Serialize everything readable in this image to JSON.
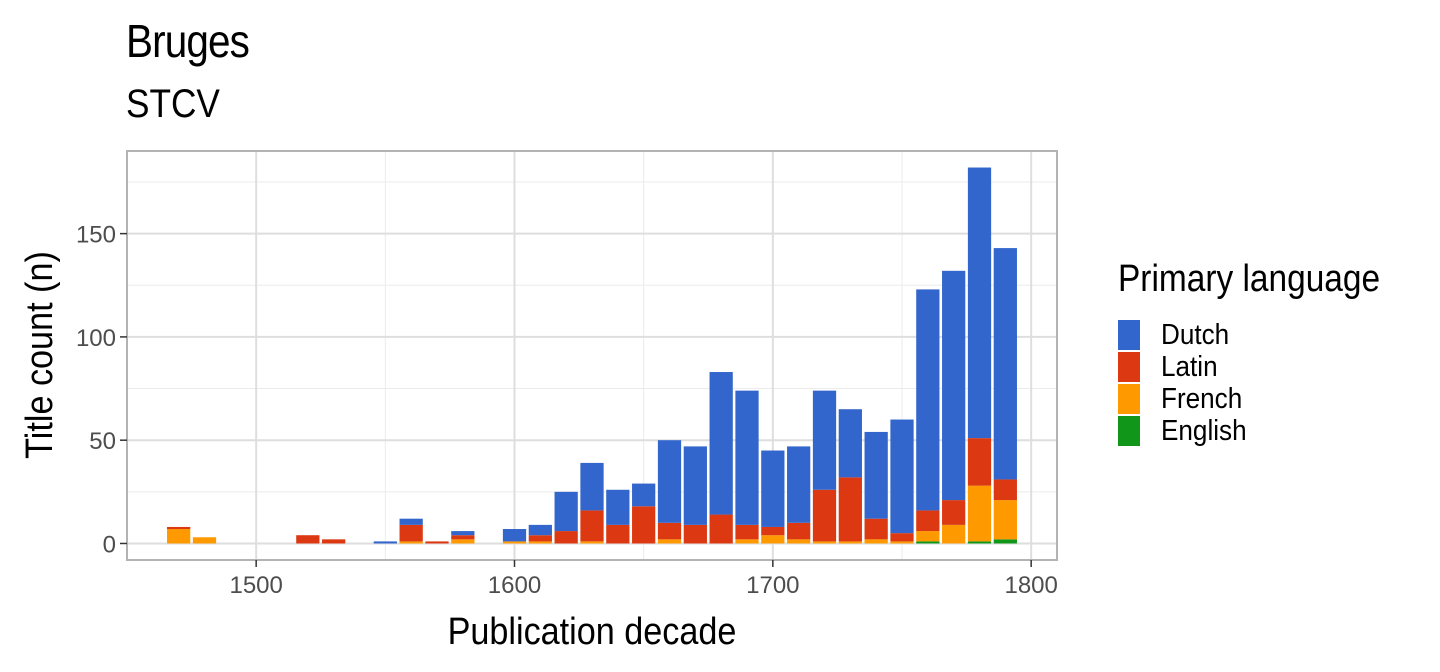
{
  "title": "Bruges",
  "subtitle": "STCV",
  "legend": {
    "title": "Primary language",
    "items": [
      {
        "label": "Dutch",
        "color": "#3366CC"
      },
      {
        "label": "Latin",
        "color": "#DC3912"
      },
      {
        "label": "French",
        "color": "#FF9900"
      },
      {
        "label": "English",
        "color": "#109618"
      }
    ]
  },
  "chart_data": {
    "type": "bar",
    "stacked": true,
    "title": "Bruges",
    "subtitle": "STCV",
    "xlabel": "Publication decade",
    "ylabel": "Title count (n)",
    "xlim": [
      1450,
      1810
    ],
    "ylim": [
      -8,
      190
    ],
    "x_ticks": [
      1500,
      1600,
      1700,
      1800
    ],
    "y_ticks": [
      0,
      50,
      100,
      150
    ],
    "grid": true,
    "legend_position": "right",
    "x": [
      1470,
      1480,
      1520,
      1530,
      1550,
      1560,
      1570,
      1580,
      1600,
      1610,
      1620,
      1630,
      1640,
      1650,
      1660,
      1670,
      1680,
      1690,
      1700,
      1710,
      1720,
      1730,
      1740,
      1750,
      1760,
      1770,
      1780,
      1790
    ],
    "series": [
      {
        "name": "English",
        "color": "#109618",
        "values": [
          0,
          0,
          0,
          0,
          0,
          0,
          0,
          0,
          0,
          0,
          0,
          0,
          0,
          0,
          0,
          0,
          0,
          0,
          0,
          0,
          0,
          0,
          0,
          0,
          1,
          0,
          1,
          2
        ]
      },
      {
        "name": "French",
        "color": "#FF9900",
        "values": [
          7,
          3,
          0,
          0,
          0,
          1,
          0,
          2,
          1,
          1,
          0,
          1,
          0,
          0,
          2,
          0,
          0,
          2,
          4,
          2,
          1,
          1,
          2,
          1,
          5,
          9,
          27,
          19
        ]
      },
      {
        "name": "Latin",
        "color": "#DC3912",
        "values": [
          1,
          0,
          4,
          2,
          0,
          8,
          1,
          2,
          0,
          3,
          6,
          15,
          9,
          18,
          8,
          9,
          14,
          7,
          4,
          8,
          25,
          31,
          10,
          4,
          10,
          12,
          23,
          10
        ]
      },
      {
        "name": "Dutch",
        "color": "#3366CC",
        "values": [
          0,
          0,
          0,
          0,
          1,
          3,
          0,
          2,
          6,
          5,
          19,
          23,
          17,
          11,
          40,
          38,
          69,
          65,
          37,
          37,
          48,
          33,
          42,
          55,
          107,
          111,
          131,
          112
        ]
      }
    ]
  }
}
